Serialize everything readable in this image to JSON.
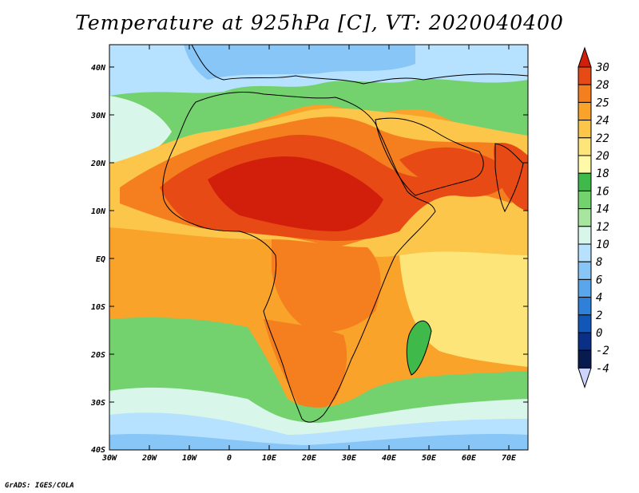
{
  "title": "Temperature at 925hPa [C], VT: 2020040400",
  "credit": "GrADS: IGES/COLA",
  "axes": {
    "lon_labels": [
      "30W",
      "20W",
      "10W",
      "0",
      "10E",
      "20E",
      "30E",
      "40E",
      "50E",
      "60E",
      "70E"
    ],
    "lat_labels": [
      "40N",
      "30N",
      "20N",
      "10N",
      "EQ",
      "10S",
      "20S",
      "30S",
      "40S"
    ]
  },
  "colorbar": {
    "levels": [
      "30",
      "28",
      "25",
      "24",
      "22",
      "20",
      "18",
      "16",
      "14",
      "12",
      "10",
      "8",
      "6",
      "4",
      "2",
      "0",
      "-2",
      "-4"
    ],
    "colors": [
      "#d11f0b",
      "#e74a15",
      "#f57e1e",
      "#f9a32a",
      "#fbc64a",
      "#fde57a",
      "#fff9a8",
      "#3fb94a",
      "#73d26e",
      "#a8e6a0",
      "#d9f6ea",
      "#b6e2ff",
      "#87c6f7",
      "#5aa6ec",
      "#2e80d8",
      "#1257b8",
      "#0a2f86",
      "#081a4e",
      "#cfd4ff"
    ]
  },
  "palette": {
    "sea_cold": "#87c6f7",
    "sea_cool": "#b6e2ff",
    "sea_mild": "#d9f6ea",
    "green": "#73d26e",
    "green_dark": "#3fb94a",
    "yellow": "#fde57a",
    "light_orange": "#fbc64a",
    "orange": "#f9a32a",
    "orange_dark": "#f57e1e",
    "red": "#e74a15",
    "deep_red": "#d11f0b"
  }
}
